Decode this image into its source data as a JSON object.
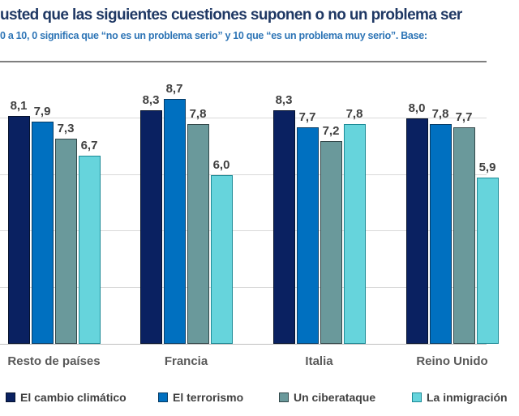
{
  "header": {
    "title": "usted que las siguientes cuestiones suponen o no un problema ser",
    "subtitle": "0 a 10, 0 significa que “no es un problema serio” y 10 que “es un problema muy serio”. Base:"
  },
  "colors": {
    "title": "#1f3864",
    "subtitle": "#2e75b6",
    "value_label": "#404040",
    "category_label": "#595959",
    "gridline": "#d9d9d9",
    "plot_top_border": "#7f7f7f",
    "axis_baseline": "#bfbfbf"
  },
  "chart_data": {
    "type": "bar",
    "title": "usted que las siguientes cuestiones suponen o no un problema ser",
    "subtitle": "0 a 10, 0 significa que “no es un problema serio” y 10 que “es un problema muy serio”. Base:",
    "categories": [
      "Resto de países",
      "Francia",
      "Italia",
      "Reino Unido"
    ],
    "series": [
      {
        "name": "El cambio climático",
        "color": "#0a2161",
        "border": "#06132e",
        "values": [
          8.1,
          8.3,
          8.3,
          8.0
        ]
      },
      {
        "name": "El terrorismo",
        "color": "#0070c0",
        "border": "#073c66",
        "values": [
          7.9,
          8.7,
          7.7,
          7.8
        ]
      },
      {
        "name": "Un ciberataque",
        "color": "#6a999b",
        "border": "#33484a",
        "values": [
          7.3,
          7.8,
          7.2,
          7.7
        ]
      },
      {
        "name": "La inmigración",
        "color": "#66d4dc",
        "border": "#1b8a96",
        "values": [
          6.7,
          6.0,
          7.8,
          5.9
        ]
      }
    ],
    "value_labels_decimal_separator": ",",
    "ylim": [
      0,
      10
    ],
    "gridline_values": [
      2,
      4,
      6,
      8
    ],
    "grid": true,
    "legend_position": "bottom",
    "clipped_right_edge": true
  }
}
